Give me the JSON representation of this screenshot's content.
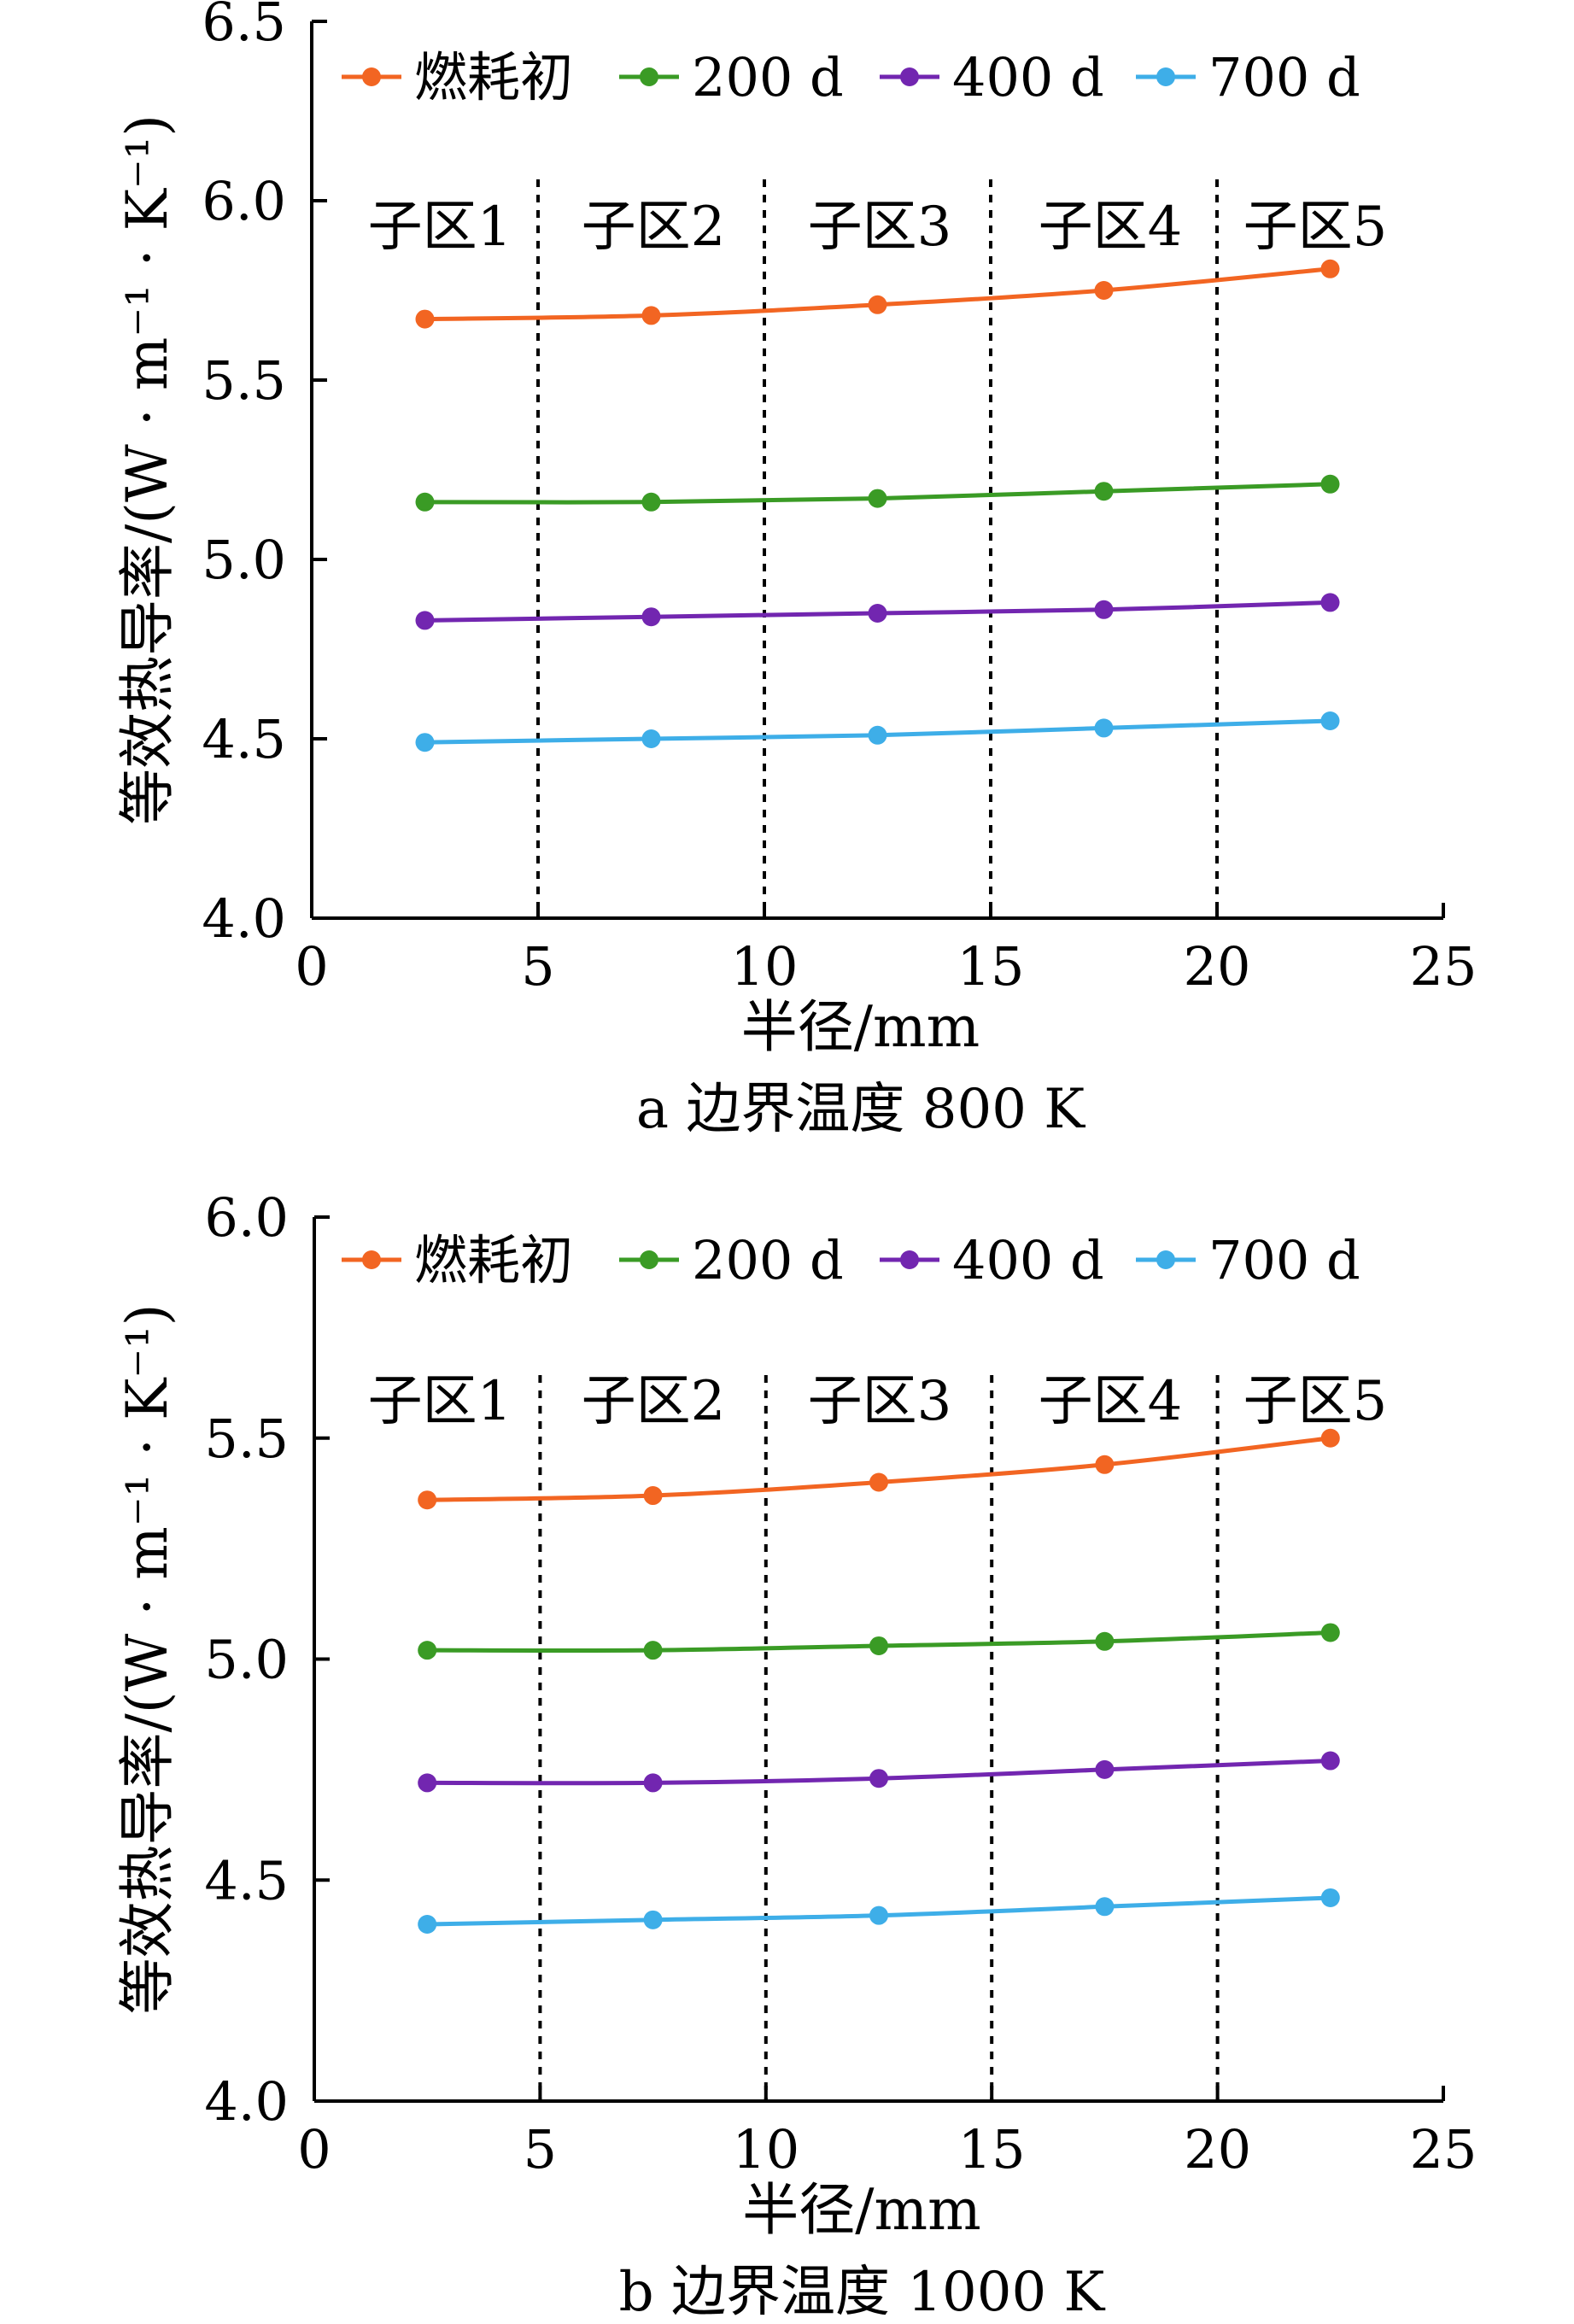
{
  "figure": {
    "panels_count": 2
  },
  "colors": {
    "series": [
      "#f26522",
      "#3a9b25",
      "#7226b0",
      "#3eaee8"
    ],
    "axis": "#000000",
    "divider": "#000000"
  },
  "chart_data": [
    {
      "type": "line",
      "caption": "a  边界温度 800 K",
      "xlabel": "半径/mm",
      "ylabel": "等效热导率/(W · m⁻¹ · K⁻¹)",
      "xlim": [
        0,
        25
      ],
      "ylim": [
        4.0,
        6.5
      ],
      "xticks": [
        0,
        5,
        10,
        15,
        20,
        25
      ],
      "yticks": [
        4.0,
        4.5,
        5.0,
        5.5,
        6.0,
        6.5
      ],
      "grid": false,
      "legend_position": "top",
      "zone_dividers": [
        5,
        10,
        15,
        20
      ],
      "zone_labels": [
        "子区1",
        "子区2",
        "子区3",
        "子区4",
        "子区5"
      ],
      "x": [
        2.5,
        7.5,
        12.5,
        17.5,
        22.5
      ],
      "series": [
        {
          "name": "燃耗初",
          "values": [
            5.67,
            5.68,
            5.71,
            5.75,
            5.81
          ]
        },
        {
          "name": "200 d",
          "values": [
            5.16,
            5.16,
            5.17,
            5.19,
            5.21
          ]
        },
        {
          "name": "400 d",
          "values": [
            4.83,
            4.84,
            4.85,
            4.86,
            4.88
          ]
        },
        {
          "name": "700 d",
          "values": [
            4.49,
            4.5,
            4.51,
            4.53,
            4.55
          ]
        }
      ]
    },
    {
      "type": "line",
      "caption": "b  边界温度 1000 K",
      "xlabel": "半径/mm",
      "ylabel": "等效热导率/(W · m⁻¹ · K⁻¹)",
      "xlim": [
        0,
        25
      ],
      "ylim": [
        4.0,
        6.0
      ],
      "xticks": [
        0,
        5,
        10,
        15,
        20,
        25
      ],
      "yticks": [
        4.0,
        4.5,
        5.0,
        5.5,
        6.0
      ],
      "grid": false,
      "legend_position": "top",
      "zone_dividers": [
        5,
        10,
        15,
        20
      ],
      "zone_labels": [
        "子区1",
        "子区2",
        "子区3",
        "子区4",
        "子区5"
      ],
      "x": [
        2.5,
        7.5,
        12.5,
        17.5,
        22.5
      ],
      "series": [
        {
          "name": "燃耗初",
          "values": [
            5.36,
            5.37,
            5.4,
            5.44,
            5.5
          ]
        },
        {
          "name": "200 d",
          "values": [
            5.02,
            5.02,
            5.03,
            5.04,
            5.06
          ]
        },
        {
          "name": "400 d",
          "values": [
            4.72,
            4.72,
            4.73,
            4.75,
            4.77
          ]
        },
        {
          "name": "700 d",
          "values": [
            4.4,
            4.41,
            4.42,
            4.44,
            4.46
          ]
        }
      ]
    }
  ]
}
